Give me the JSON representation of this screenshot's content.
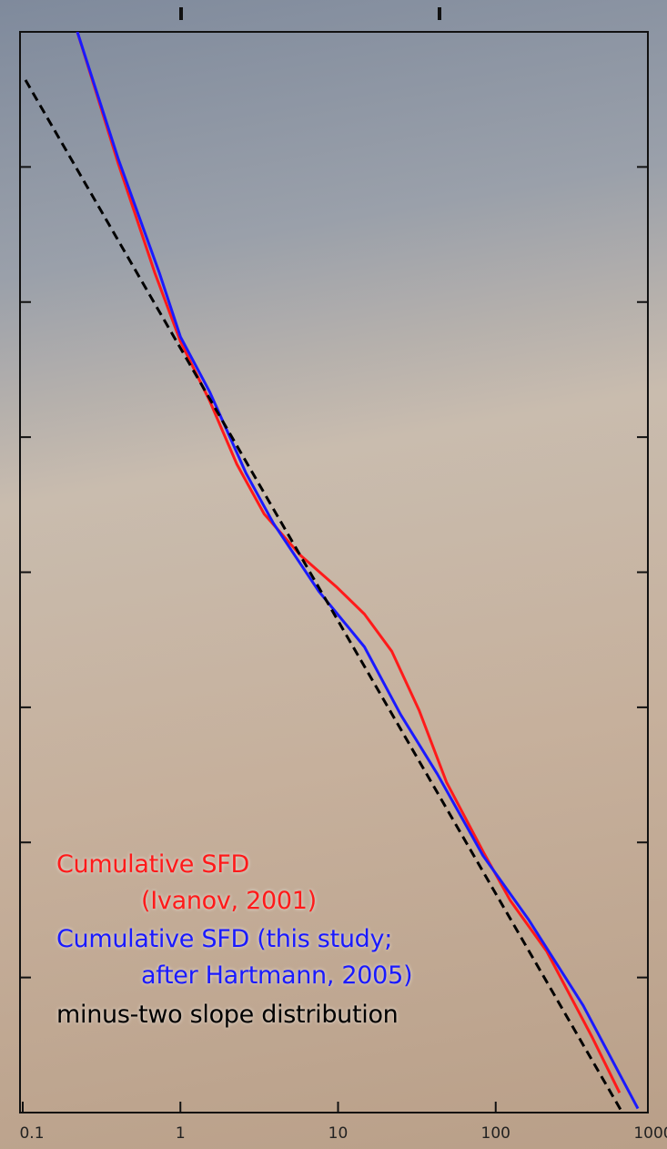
{
  "chart_data": {
    "type": "line",
    "xscale": "log",
    "yscale": "log",
    "xlim": [
      0.1,
      1000
    ],
    "xticks": [
      0.1,
      1,
      10,
      100,
      1000
    ],
    "ylim": [
      1e-06,
      100
    ],
    "yticks": [
      1e-06,
      1e-05,
      0.0001,
      0.001,
      0.01,
      0.1,
      1,
      10,
      100
    ],
    "series": [
      {
        "name": "Cumulative SFD\n(Ivanov, 2001)",
        "color": "#ff1a1a",
        "x": [
          0.222,
          0.404,
          0.689,
          1,
          1.53,
          2.28,
          3.4,
          5.79,
          9.87,
          14.7,
          21.9,
          32.7,
          48.7,
          83,
          124,
          211,
          410,
          611
        ],
        "values": [
          100,
          10.5,
          1.64,
          0.51,
          0.187,
          0.063,
          0.027,
          0.0133,
          0.0077,
          0.0049,
          0.0026,
          0.00095,
          0.00028,
          8.6e-05,
          3.7e-05,
          1.56e-05,
          3.6e-06,
          1.4e-06
        ]
      },
      {
        "name": "Cumulative SFD (this study;\nafter Hartmann, 2005)",
        "color": "#1a1aff",
        "x": [
          0.222,
          0.404,
          0.736,
          1,
          1.53,
          2.61,
          3.89,
          7.56,
          14.7,
          25,
          42.7,
          83,
          161,
          359,
          798
        ],
        "values": [
          100,
          11.4,
          1.64,
          0.553,
          0.218,
          0.054,
          0.023,
          0.0072,
          0.0028,
          0.00088,
          0.00032,
          8e-05,
          2.7e-05,
          6.2e-06,
          1.07e-06
        ]
      },
      {
        "name": "minus-two slope distribution",
        "color": "#000000",
        "dash": true,
        "x": [
          0.104,
          636
        ],
        "values": [
          44,
          1e-06
        ]
      }
    ]
  }
}
